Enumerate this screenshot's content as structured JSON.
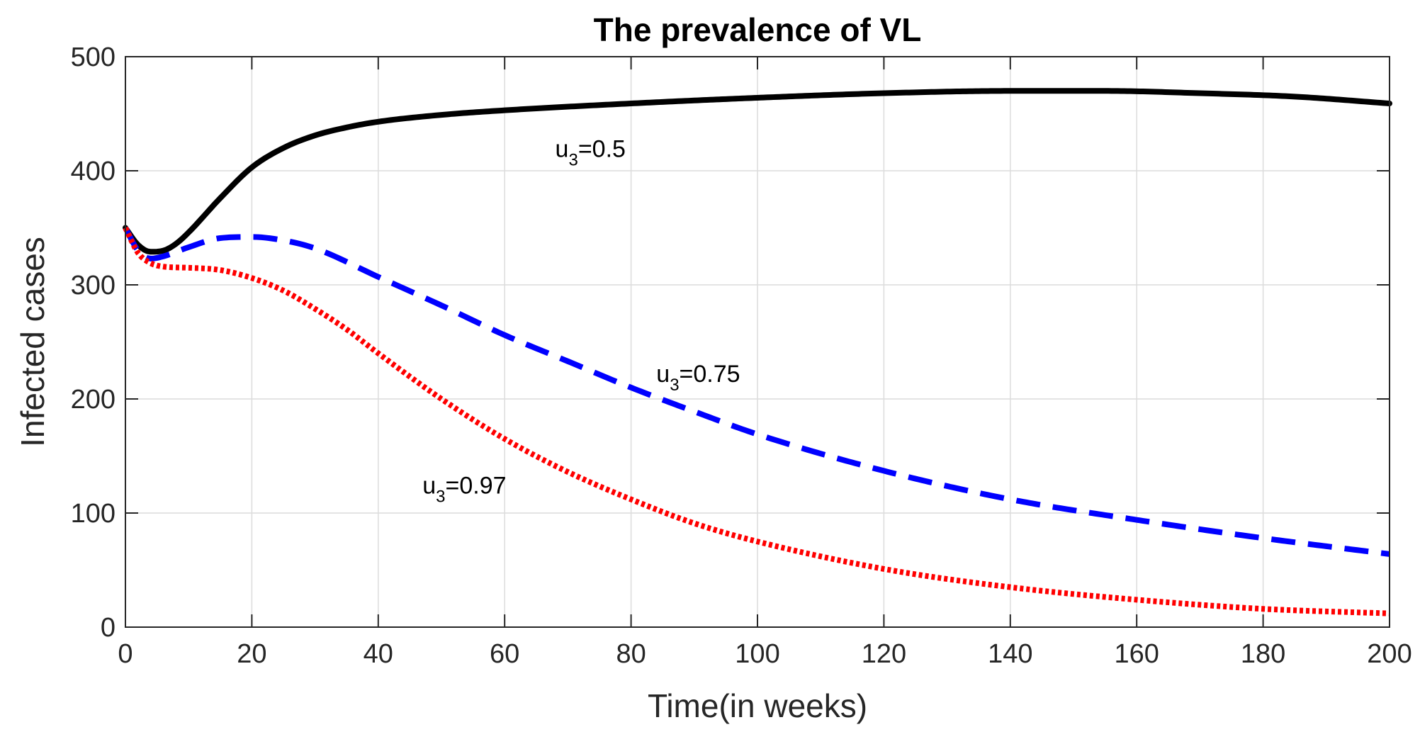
{
  "chart_data": {
    "type": "line",
    "title": "The prevalence of VL",
    "xlabel": "Time(in weeks)",
    "ylabel": "Infected cases",
    "xlim": [
      0,
      200
    ],
    "ylim": [
      0,
      500
    ],
    "xticks": [
      0,
      20,
      40,
      60,
      80,
      100,
      120,
      140,
      160,
      180,
      200
    ],
    "yticks": [
      0,
      100,
      200,
      300,
      400,
      500
    ],
    "xtick_labels": [
      "0",
      "20",
      "40",
      "60",
      "80",
      "100",
      "120",
      "140",
      "160",
      "180",
      "200"
    ],
    "ytick_labels": [
      "0",
      "100",
      "200",
      "300",
      "400",
      "500"
    ],
    "grid": true,
    "series": [
      {
        "name": "u3=0.5",
        "color": "#000000",
        "style": "solid",
        "x": [
          0,
          2,
          4,
          6,
          8,
          10,
          15,
          20,
          25,
          30,
          35,
          40,
          50,
          60,
          80,
          100,
          120,
          140,
          155,
          170,
          185,
          200
        ],
        "y": [
          350,
          335,
          329,
          330,
          336,
          346,
          376,
          403,
          420,
          431,
          438,
          443,
          449,
          453,
          459,
          464,
          468,
          470,
          470,
          468,
          465,
          459
        ]
      },
      {
        "name": "u3=0.75",
        "color": "#0000ff",
        "style": "dashed",
        "x": [
          0,
          2,
          4,
          6,
          10,
          15,
          20,
          25,
          30,
          40,
          50,
          60,
          70,
          80,
          90,
          100,
          120,
          140,
          160,
          180,
          200
        ],
        "y": [
          350,
          330,
          323,
          325,
          333,
          341,
          342,
          339,
          332,
          307,
          282,
          256,
          233,
          210,
          189,
          169,
          137,
          112,
          94,
          78,
          64
        ]
      },
      {
        "name": "u3=0.97",
        "color": "#ff0000",
        "style": "dotted",
        "x": [
          0,
          2,
          4,
          6,
          10,
          15,
          20,
          25,
          30,
          35,
          40,
          50,
          60,
          70,
          80,
          90,
          100,
          120,
          140,
          160,
          180,
          200
        ],
        "y": [
          350,
          328,
          319,
          316,
          315,
          313,
          306,
          295,
          279,
          261,
          240,
          200,
          165,
          136,
          112,
          91,
          75,
          51,
          35,
          24,
          16,
          12
        ]
      }
    ],
    "annotations": [
      {
        "text": "u",
        "sub": "3",
        "rest": "=0.5",
        "x": 68,
        "y": 412,
        "series": 0
      },
      {
        "text": "u",
        "sub": "3",
        "rest": "=0.75",
        "x": 84,
        "y": 215,
        "series": 1
      },
      {
        "text": "u",
        "sub": "3",
        "rest": "=0.97",
        "x": 47,
        "y": 117,
        "series": 2
      }
    ]
  }
}
